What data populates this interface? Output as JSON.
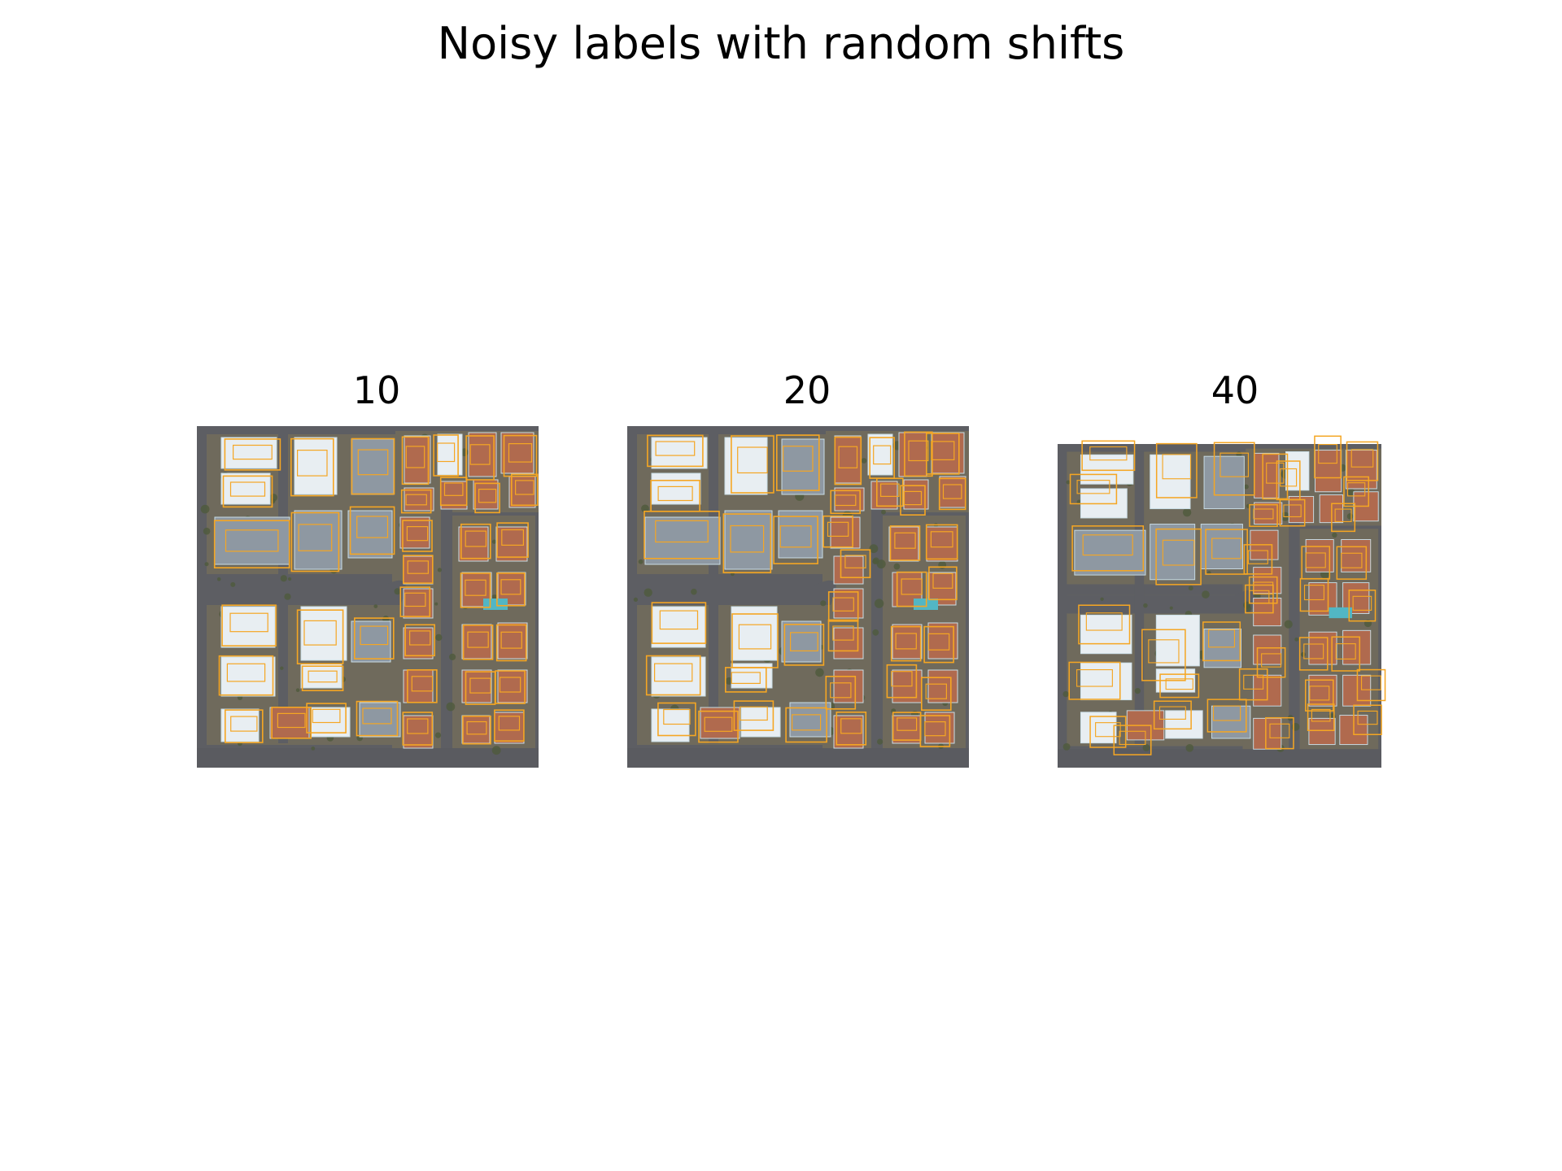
{
  "figure": {
    "title": "Noisy labels with random shifts"
  },
  "panels": [
    {
      "label": "10"
    },
    {
      "label": "20"
    },
    {
      "label": "40"
    }
  ],
  "colors": {
    "road": "#5d5e63",
    "block": "#6f6a5c",
    "vegetation": "#4f5a3c",
    "roof_white": "#e8eef2",
    "roof_grey": "#8e98a2",
    "roof_tile": "#b06a4e",
    "pool": "#52b6c4",
    "label_outline": "#f5a623"
  },
  "icons": [
    "aerial-image",
    "building-outline"
  ]
}
